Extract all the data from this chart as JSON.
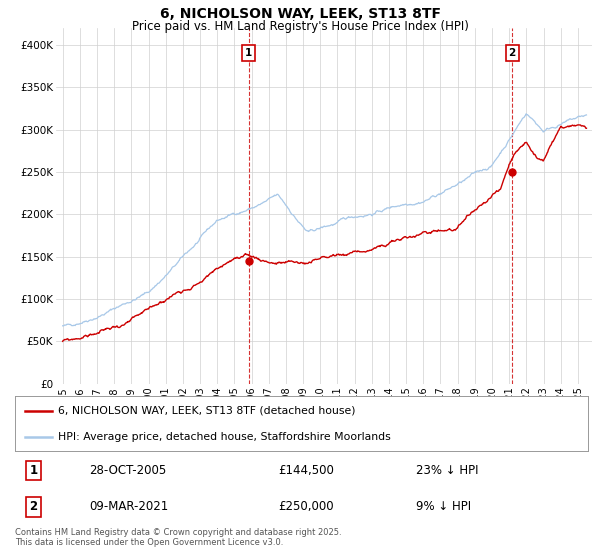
{
  "title": "6, NICHOLSON WAY, LEEK, ST13 8TF",
  "subtitle": "Price paid vs. HM Land Registry's House Price Index (HPI)",
  "ylim": [
    0,
    420000
  ],
  "yticks": [
    0,
    50000,
    100000,
    150000,
    200000,
    250000,
    300000,
    350000,
    400000
  ],
  "ytick_labels": [
    "£0",
    "£50K",
    "£100K",
    "£150K",
    "£200K",
    "£250K",
    "£300K",
    "£350K",
    "£400K"
  ],
  "hpi_color": "#a8c8e8",
  "price_color": "#cc0000",
  "sale1_year": 2005.83,
  "sale1_price": 144500,
  "sale2_year": 2021.17,
  "sale2_price": 250000,
  "legend_entry1": "6, NICHOLSON WAY, LEEK, ST13 8TF (detached house)",
  "legend_entry2": "HPI: Average price, detached house, Staffordshire Moorlands",
  "note_row1": "Contains HM Land Registry data © Crown copyright and database right 2025.",
  "note_row2": "This data is licensed under the Open Government Licence v3.0.",
  "table_row1_num": "1",
  "table_row1_date": "28-OCT-2005",
  "table_row1_price": "£144,500",
  "table_row1_hpi": "23% ↓ HPI",
  "table_row2_num": "2",
  "table_row2_date": "09-MAR-2021",
  "table_row2_price": "£250,000",
  "table_row2_hpi": "9% ↓ HPI",
  "background_color": "#ffffff",
  "grid_color": "#d0d0d0"
}
